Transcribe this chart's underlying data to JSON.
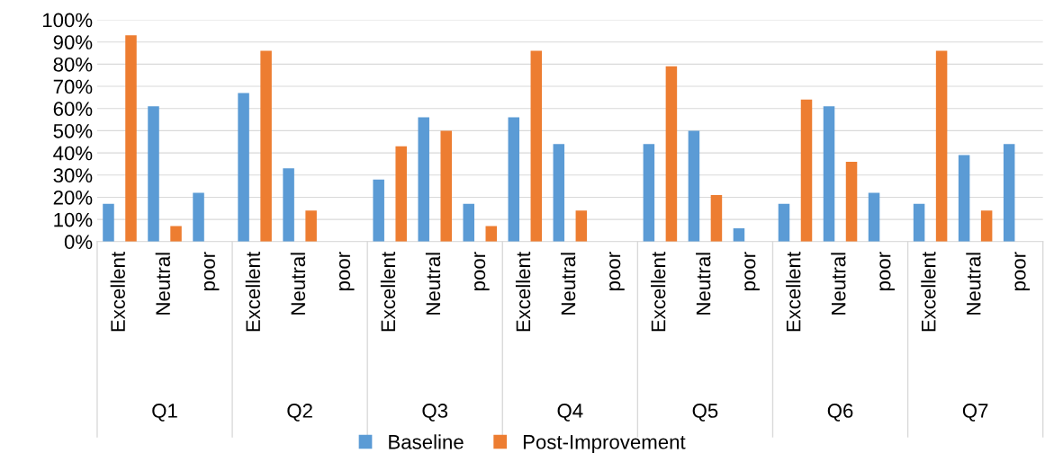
{
  "chart_data": {
    "type": "bar",
    "categories": [
      "Excellent",
      "Neutral",
      "poor",
      "Excellent",
      "Neutral",
      "poor",
      "Excellent",
      "Neutral",
      "poor",
      "Excellent",
      "Neutral",
      "poor",
      "Excellent",
      "Neutral",
      "poor",
      "Excellent",
      "Neutral",
      "poor",
      "Excellent",
      "Neutral",
      "poor"
    ],
    "series": [
      {
        "name": "Baseline",
        "color": "#5b9bd5",
        "values": [
          17,
          61,
          22,
          67,
          33,
          0,
          28,
          56,
          17,
          56,
          44,
          0,
          44,
          50,
          6,
          17,
          61,
          22,
          17,
          39,
          44
        ]
      },
      {
        "name": "Post-Improvement",
        "color": "#ed7d31",
        "values": [
          93,
          7,
          0,
          86,
          14,
          0,
          43,
          50,
          7,
          86,
          14,
          0,
          79,
          21,
          0,
          64,
          36,
          0,
          86,
          14,
          0
        ]
      }
    ],
    "annotations": [
      "Q1",
      "Q2",
      "Q3",
      "Q4",
      "Q5",
      "Q6",
      "Q7"
    ],
    "ylim": [
      0,
      100
    ],
    "yticks": [
      {
        "value": 0,
        "label": "0%"
      },
      {
        "value": 10,
        "label": "10%"
      },
      {
        "value": 20,
        "label": "20%"
      },
      {
        "value": 30,
        "label": "30%"
      },
      {
        "value": 40,
        "label": "40%"
      },
      {
        "value": 50,
        "label": "50%"
      },
      {
        "value": 60,
        "label": "60%"
      },
      {
        "value": 70,
        "label": "70%"
      },
      {
        "value": 80,
        "label": "80%"
      },
      {
        "value": 90,
        "label": "90%"
      },
      {
        "value": 100,
        "label": "100%"
      }
    ],
    "grid": "y",
    "legend": "bottom"
  }
}
